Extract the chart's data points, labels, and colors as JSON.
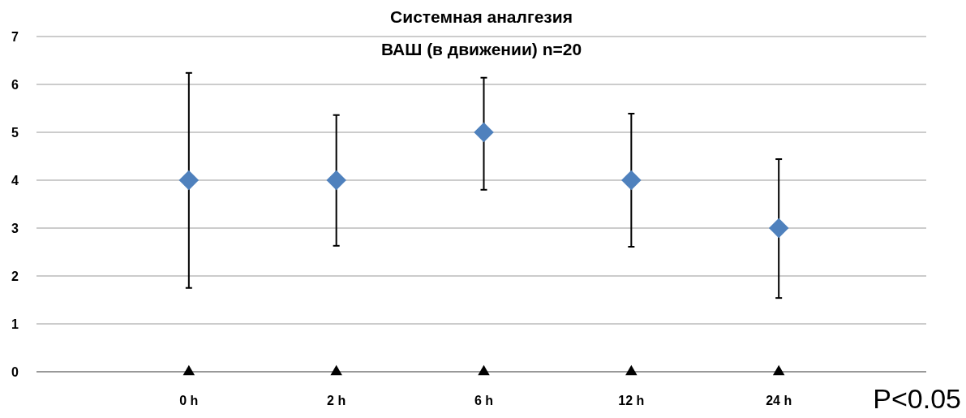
{
  "chart_data": {
    "type": "scatter",
    "title": "Системная аналгезия",
    "subtitle": "ВАШ (в движении) n=20",
    "categories": [
      null,
      "0 h",
      "2 h",
      "6 h",
      "12 h",
      "24 h",
      null
    ],
    "series": [
      {
        "color": "#4f81bd",
        "marker": "diamond",
        "values": [
          null,
          4,
          4,
          5,
          4,
          3,
          null
        ],
        "errors": [
          null,
          [
            1.75,
            6.24
          ],
          [
            2.63,
            5.36
          ],
          [
            3.8,
            6.14
          ],
          [
            2.61,
            5.39
          ],
          [
            1.54,
            4.44
          ],
          null
        ]
      },
      {
        "color": "#000000",
        "marker": "triangle",
        "values": [
          null,
          0,
          0,
          0,
          0,
          0,
          null
        ]
      }
    ],
    "ylim": [
      0,
      7
    ],
    "yticks": [
      0,
      1,
      2,
      3,
      4,
      5,
      6,
      7
    ],
    "grid": "y",
    "annotations": [
      "P<0.05"
    ]
  }
}
